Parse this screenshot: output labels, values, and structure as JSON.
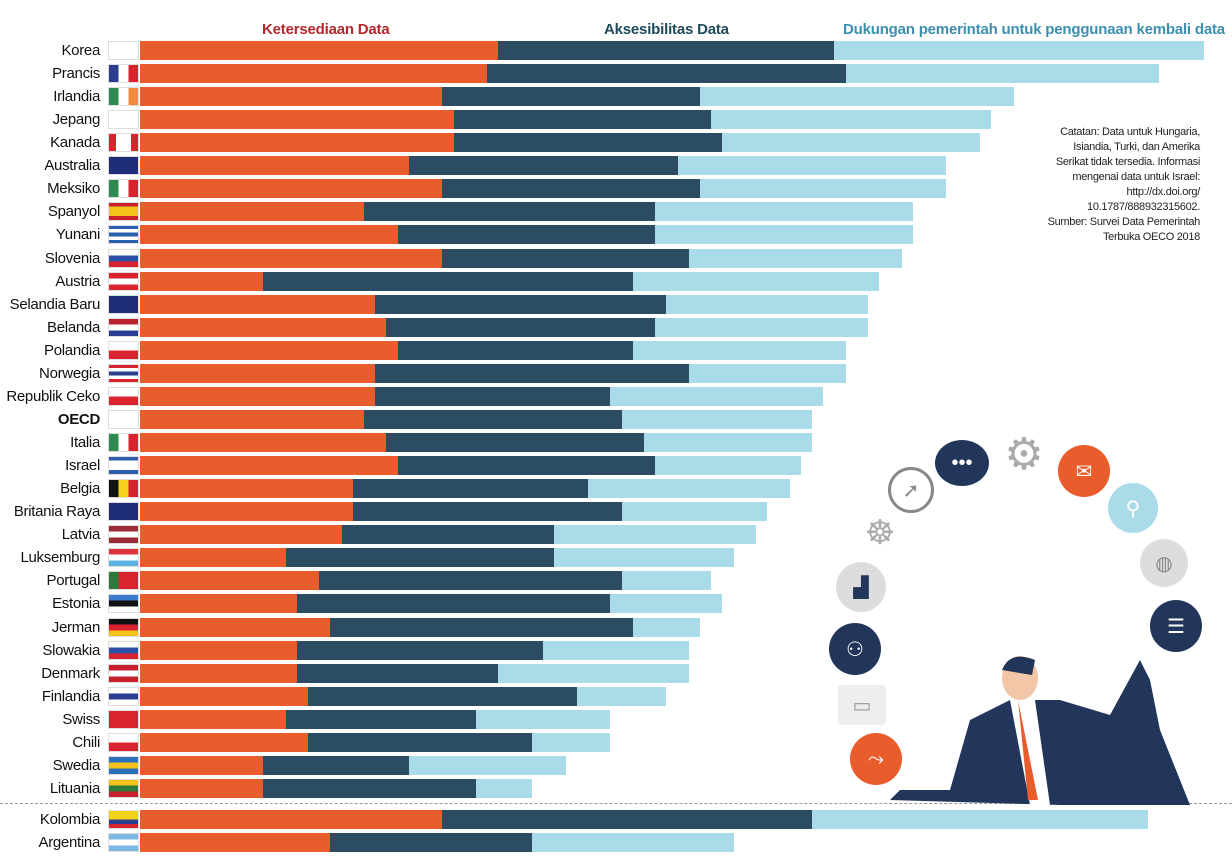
{
  "headers": {
    "orange": "Ketersediaan Data",
    "dark": "Aksesibilitas Data",
    "light": "Dukungan pemerintah untuk penggunaan kembali data"
  },
  "colors": {
    "orange": "#e95c2c",
    "dark": "#2b4c63",
    "light": "#a9dbe8",
    "h_orange": "#b5272c",
    "h_dark": "#1e4a5a",
    "h_light": "#3c8fae"
  },
  "note": [
    "Catatan: Data untuk Hungaria,",
    "Isiandia, Turki, dan Amerika",
    "Serikat tidak tersedia. Informasi",
    "mengenai data untuk Israel:",
    "http://dx.doi.org/",
    "10.1787/888932315602.",
    "Sumber: Survei Data Pemerintah",
    "Terbuka OECO 2018"
  ],
  "chart_data": {
    "type": "bar",
    "orientation": "horizontal",
    "stacked": true,
    "legend": "top",
    "series": [
      {
        "name": "Ketersediaan Data"
      },
      {
        "name": "Aksesibilitas Data"
      },
      {
        "name": "Dukungan pemerintah untuk penggunaan kembali data"
      }
    ],
    "rows": [
      {
        "c": "Korea",
        "v": [
          0.32,
          0.3,
          0.33
        ],
        "f": [
          "v",
          "#fff"
        ]
      },
      {
        "c": "Prancis",
        "v": [
          0.31,
          0.32,
          0.28
        ],
        "f": [
          "v",
          "#2b3d8f",
          "#fff",
          "#d9232e"
        ]
      },
      {
        "c": "Irlandia",
        "v": [
          0.27,
          0.23,
          0.28
        ],
        "f": [
          "v",
          "#2e8b4f",
          "#fff",
          "#f08a3c"
        ]
      },
      {
        "c": "Jepang",
        "v": [
          0.28,
          0.23,
          0.25
        ],
        "f": [
          "v",
          "#fff"
        ]
      },
      {
        "c": "Kanada",
        "v": [
          0.28,
          0.24,
          0.23
        ],
        "f": [
          "v",
          "#d9232e",
          "#fff",
          "#fff",
          "#d9232e"
        ]
      },
      {
        "c": "Australia",
        "v": [
          0.24,
          0.24,
          0.24
        ],
        "f": [
          "v",
          "#1f2e7a"
        ]
      },
      {
        "c": "Meksiko",
        "v": [
          0.27,
          0.23,
          0.22
        ],
        "f": [
          "v",
          "#2e8b4f",
          "#fff",
          "#d9232e"
        ]
      },
      {
        "c": "Spanyol",
        "v": [
          0.2,
          0.26,
          0.23
        ],
        "f": [
          "h",
          "#c8202c",
          "#f4c21a",
          "#f4c21a",
          "#c8202c"
        ]
      },
      {
        "c": "Yunani",
        "v": [
          0.23,
          0.23,
          0.23
        ],
        "f": [
          "h",
          "#2a5fae",
          "#fff",
          "#2a5fae",
          "#fff",
          "#2a5fae"
        ]
      },
      {
        "c": "Slovenia",
        "v": [
          0.27,
          0.22,
          0.19
        ],
        "f": [
          "h",
          "#fff",
          "#2a4fa3",
          "#d9232e"
        ]
      },
      {
        "c": "Austria",
        "v": [
          0.11,
          0.33,
          0.22
        ],
        "f": [
          "h",
          "#d9232e",
          "#fff",
          "#d9232e"
        ]
      },
      {
        "c": "Selandia Baru",
        "v": [
          0.21,
          0.26,
          0.18
        ],
        "f": [
          "v",
          "#1f2e7a"
        ]
      },
      {
        "c": "Belanda",
        "v": [
          0.22,
          0.24,
          0.19
        ],
        "f": [
          "h",
          "#b8232e",
          "#fff",
          "#2a3f8f"
        ]
      },
      {
        "c": "Polandia",
        "v": [
          0.23,
          0.21,
          0.19
        ],
        "f": [
          "h",
          "#fff",
          "#d9232e"
        ]
      },
      {
        "c": "Norwegia",
        "v": [
          0.21,
          0.28,
          0.14
        ],
        "f": [
          "h",
          "#d9232e",
          "#fff",
          "#2a3f8f",
          "#fff",
          "#d9232e"
        ]
      },
      {
        "c": "Republik Ceko",
        "v": [
          0.21,
          0.21,
          0.19
        ],
        "f": [
          "h",
          "#fff",
          "#d9232e"
        ]
      },
      {
        "c": "OECD",
        "v": [
          0.2,
          0.23,
          0.17
        ],
        "f": [
          "v",
          "#fff"
        ]
      },
      {
        "c": "Italia",
        "v": [
          0.22,
          0.23,
          0.15
        ],
        "f": [
          "v",
          "#2e8b4f",
          "#fff",
          "#d9232e"
        ]
      },
      {
        "c": "Israel",
        "v": [
          0.23,
          0.23,
          0.13
        ],
        "f": [
          "h",
          "#2a5fae",
          "#fff",
          "#fff",
          "#2a5fae"
        ]
      },
      {
        "c": "Belgia",
        "v": [
          0.19,
          0.21,
          0.18
        ],
        "f": [
          "v",
          "#111",
          "#f4d21a",
          "#d9232e"
        ]
      },
      {
        "c": "Britania Raya",
        "v": [
          0.19,
          0.24,
          0.13
        ],
        "f": [
          "v",
          "#1f2e7a"
        ]
      },
      {
        "c": "Latvia",
        "v": [
          0.18,
          0.19,
          0.18
        ],
        "f": [
          "h",
          "#9c2a35",
          "#fff",
          "#9c2a35"
        ]
      },
      {
        "c": "Luksemburg",
        "v": [
          0.13,
          0.24,
          0.16
        ],
        "f": [
          "h",
          "#e0343c",
          "#fff",
          "#5bb3e4"
        ]
      },
      {
        "c": "Portugal",
        "v": [
          0.16,
          0.27,
          0.08
        ],
        "f": [
          "v",
          "#2e7a3a",
          "#d9232e",
          "#d9232e"
        ]
      },
      {
        "c": "Estonia",
        "v": [
          0.14,
          0.28,
          0.1
        ],
        "f": [
          "h",
          "#3a7bd0",
          "#111",
          "#fff"
        ]
      },
      {
        "c": "Jerman",
        "v": [
          0.17,
          0.27,
          0.06
        ],
        "f": [
          "h",
          "#111",
          "#d9232e",
          "#f4c21a"
        ]
      },
      {
        "c": "Slowakia",
        "v": [
          0.14,
          0.22,
          0.13
        ],
        "f": [
          "h",
          "#fff",
          "#2a4fa3",
          "#d9232e"
        ]
      },
      {
        "c": "Denmark",
        "v": [
          0.14,
          0.18,
          0.17
        ],
        "f": [
          "h",
          "#c8202c",
          "#fff",
          "#c8202c"
        ]
      },
      {
        "c": "Finlandia",
        "v": [
          0.15,
          0.24,
          0.08
        ],
        "f": [
          "h",
          "#fff",
          "#2a3f8f",
          "#fff"
        ]
      },
      {
        "c": "Swiss",
        "v": [
          0.13,
          0.17,
          0.12
        ],
        "f": [
          "v",
          "#d9232e"
        ]
      },
      {
        "c": "Chili",
        "v": [
          0.15,
          0.2,
          0.07
        ],
        "f": [
          "h",
          "#fff",
          "#d9232e"
        ]
      },
      {
        "c": "Swedia",
        "v": [
          0.11,
          0.13,
          0.14
        ],
        "f": [
          "h",
          "#2a6fb8",
          "#f4c21a",
          "#2a6fb8"
        ]
      },
      {
        "c": "Lituania",
        "v": [
          0.11,
          0.19,
          0.05
        ],
        "f": [
          "h",
          "#f4c21a",
          "#2e7a3a",
          "#c8202c"
        ]
      },
      {
        "c": "Kolombia",
        "v": [
          0.27,
          0.33,
          0.3
        ],
        "f": [
          "h",
          "#f4d21a",
          "#f4d21a",
          "#2a3f8f",
          "#d9232e"
        ]
      },
      {
        "c": "Argentina",
        "v": [
          0.17,
          0.18,
          0.18
        ],
        "f": [
          "h",
          "#7cb8e4",
          "#fff",
          "#7cb8e4"
        ]
      }
    ]
  }
}
